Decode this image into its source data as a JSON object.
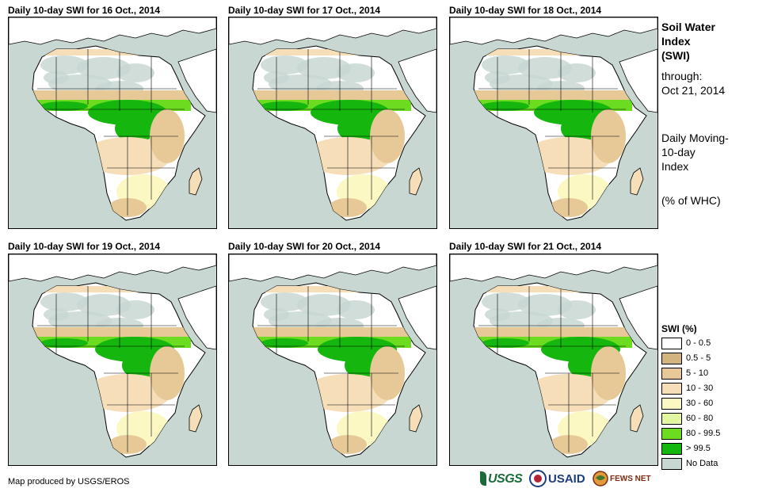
{
  "panels": [
    {
      "title": "Daily 10-day SWI for 16 Oct., 2014"
    },
    {
      "title": "Daily 10-day SWI for 17 Oct., 2014"
    },
    {
      "title": "Daily 10-day SWI for 18 Oct., 2014"
    },
    {
      "title": "Daily 10-day SWI for 19 Oct., 2014"
    },
    {
      "title": "Daily 10-day SWI for 20 Oct., 2014"
    },
    {
      "title": "Daily 10-day SWI for 21 Oct., 2014"
    }
  ],
  "side": {
    "title_line1": "Soil Water",
    "title_line2": "Index",
    "title_line3": "(SWI)",
    "through_label": "through:",
    "through_date": "Oct 21, 2014",
    "desc_line1": "Daily Moving-",
    "desc_line2": "10-day",
    "desc_line3": "Index",
    "unit": "(% of WHC)"
  },
  "legend": {
    "title": "SWI (%)",
    "items": [
      {
        "label": "0 - 0.5",
        "color": "#ffffff"
      },
      {
        "label": "0.5 - 5",
        "color": "#d2b57e"
      },
      {
        "label": "5 - 10",
        "color": "#e6c997"
      },
      {
        "label": "10 - 30",
        "color": "#f5deb8"
      },
      {
        "label": "30 - 60",
        "color": "#fbf8c4"
      },
      {
        "label": "60 - 80",
        "color": "#e3f7a3"
      },
      {
        "label": "80 - 99.5",
        "color": "#6bdc1f"
      },
      {
        "label": "> 99.5",
        "color": "#15b70f"
      },
      {
        "label": "No Data",
        "color": "#c8d7d2"
      }
    ]
  },
  "colors": {
    "ocean": "#c8d7d2",
    "land_dry": "#ffffff",
    "sahara_nodata": "#c8d7d2",
    "green_dark": "#15b70f",
    "green_light": "#6bdc1f",
    "tan": "#e6c997",
    "tan_light": "#f5deb8",
    "yellow_light": "#fbf8c4"
  },
  "credit": "Map produced by USGS/EROS",
  "logos": {
    "usgs": "USGS",
    "usaid": "USAID",
    "fews": "FEWS NET"
  }
}
